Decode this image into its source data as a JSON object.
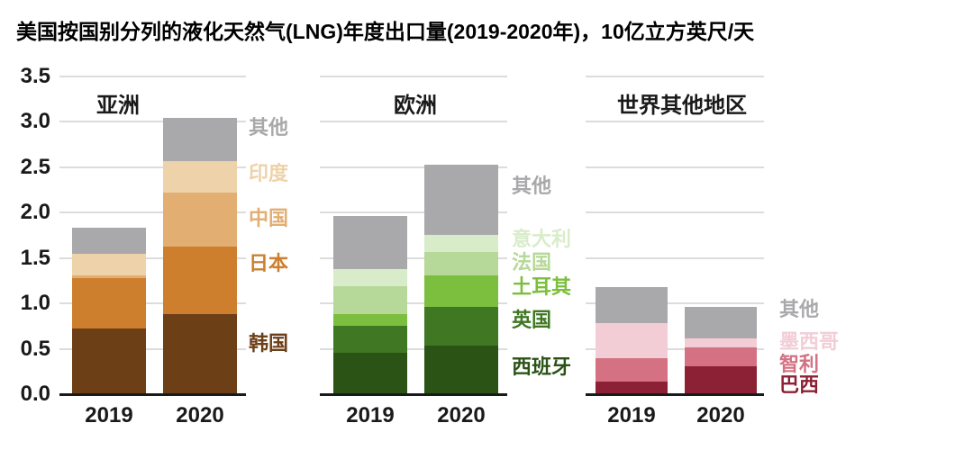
{
  "title": "美国按国别分列的液化天然气(LNG)年度出口量(2019-2020年)，10亿立方英尺/天",
  "y_axis": {
    "ticks": [
      "3.5",
      "3.0",
      "2.5",
      "2.0",
      "1.5",
      "1.0",
      "0.5",
      "0.0"
    ]
  },
  "chart_data": {
    "type": "bar",
    "stacked": true,
    "title": "美国按国别分列的液化天然气(LNG)年度出口量(2019-2020年)",
    "unit": "10亿立方英尺/天",
    "categories": [
      "2019",
      "2020"
    ],
    "ylim": [
      0,
      3.5
    ],
    "grid": true,
    "groups": [
      {
        "name": "亚洲",
        "legend_top_to_bottom": [
          "其他",
          "印度",
          "中国",
          "日本",
          "韩国"
        ],
        "series": [
          {
            "name": "韩国",
            "color": "#6d3f17",
            "values": [
              0.72,
              0.88
            ]
          },
          {
            "name": "日本",
            "color": "#cd7f2e",
            "values": [
              0.56,
              0.75
            ]
          },
          {
            "name": "中国",
            "color": "#e2ae72",
            "values": [
              0.03,
              0.59
            ]
          },
          {
            "name": "印度",
            "color": "#eed2a9",
            "values": [
              0.24,
              0.35
            ]
          },
          {
            "name": "其他",
            "color": "#a9a9ac",
            "values": [
              0.28,
              0.47
            ]
          }
        ],
        "totals": [
          1.83,
          3.04
        ]
      },
      {
        "name": "欧洲",
        "legend_top_to_bottom": [
          "其他",
          "意大利",
          "法国",
          "土耳其",
          "英国",
          "西班牙"
        ],
        "series": [
          {
            "name": "西班牙",
            "color": "#2b5316",
            "values": [
              0.46,
              0.54
            ]
          },
          {
            "name": "英国",
            "color": "#3f7723",
            "values": [
              0.29,
              0.42
            ]
          },
          {
            "name": "土耳其",
            "color": "#7cbf3e",
            "values": [
              0.13,
              0.35
            ]
          },
          {
            "name": "法国",
            "color": "#b6d898",
            "values": [
              0.31,
              0.26
            ]
          },
          {
            "name": "意大利",
            "color": "#d9ecca",
            "values": [
              0.19,
              0.19
            ]
          },
          {
            "name": "其他",
            "color": "#a9a9ac",
            "values": [
              0.58,
              0.77
            ]
          }
        ],
        "totals": [
          1.96,
          2.53
        ]
      },
      {
        "name": "世界其他地区",
        "legend_top_to_bottom": [
          "其他",
          "墨西哥",
          "智利",
          "巴西"
        ],
        "series": [
          {
            "name": "巴西",
            "color": "#8c2034",
            "values": [
              0.14,
              0.31
            ]
          },
          {
            "name": "智利",
            "color": "#d47182",
            "values": [
              0.26,
              0.21
            ]
          },
          {
            "name": "墨西哥",
            "color": "#f2cdd5",
            "values": [
              0.38,
              0.09
            ]
          },
          {
            "name": "其他",
            "color": "#a9a9ac",
            "values": [
              0.4,
              0.35
            ]
          }
        ],
        "totals": [
          1.18,
          0.96
        ]
      }
    ]
  }
}
